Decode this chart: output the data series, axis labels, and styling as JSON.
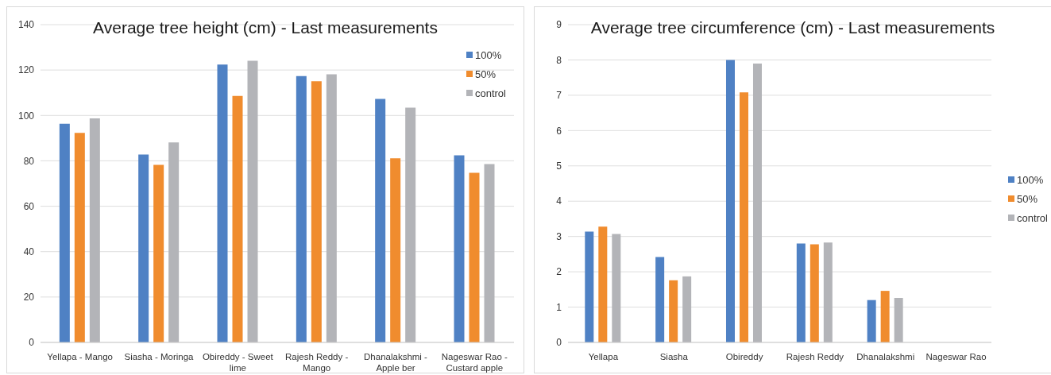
{
  "chart_data": [
    {
      "type": "bar",
      "title": "Average tree height (cm) - Last measurements",
      "categories": [
        "Yellapa - Mango",
        "Siasha - Moringa",
        "Obireddy - Sweet lime",
        "Rajesh Reddy - Mango",
        "Dhanalakshmi - Apple ber",
        "Nageswar Rao - Custard apple"
      ],
      "series": [
        {
          "name": "100%",
          "color": "#4f81c4",
          "values": [
            96.3,
            82.8,
            122.4,
            117.3,
            107.3,
            82.4
          ]
        },
        {
          "name": "50%",
          "color": "#f08c2e",
          "values": [
            92.3,
            78.2,
            108.6,
            115.1,
            81.1,
            74.7
          ]
        },
        {
          "name": "control",
          "color": "#b3b4b8",
          "values": [
            98.7,
            88.1,
            124.1,
            118.1,
            103.4,
            78.6
          ]
        }
      ],
      "ylim": [
        0,
        140
      ],
      "yticks": [
        0,
        20,
        40,
        60,
        80,
        100,
        120,
        140
      ],
      "grid": "y",
      "legend": "top right"
    },
    {
      "type": "bar",
      "title": "Average tree circumference (cm) - Last measurements",
      "categories": [
        "Yellapa",
        "Siasha",
        "Obireddy",
        "Rajesh Reddy",
        "Dhanalakshmi",
        "Nageswar Rao"
      ],
      "series": [
        {
          "name": "100%",
          "color": "#4f81c4",
          "values": [
            3.14,
            2.42,
            8.0,
            2.8,
            1.2,
            null
          ]
        },
        {
          "name": "50%",
          "color": "#f08c2e",
          "values": [
            3.28,
            1.76,
            7.08,
            2.78,
            1.46,
            null
          ]
        },
        {
          "name": "control",
          "color": "#b3b4b8",
          "values": [
            3.07,
            1.87,
            7.9,
            2.83,
            1.26,
            null
          ]
        }
      ],
      "ylim": [
        0,
        9
      ],
      "yticks": [
        0,
        1,
        2,
        3,
        4,
        5,
        6,
        7,
        8,
        9
      ],
      "grid": "y",
      "legend": "right"
    }
  ]
}
